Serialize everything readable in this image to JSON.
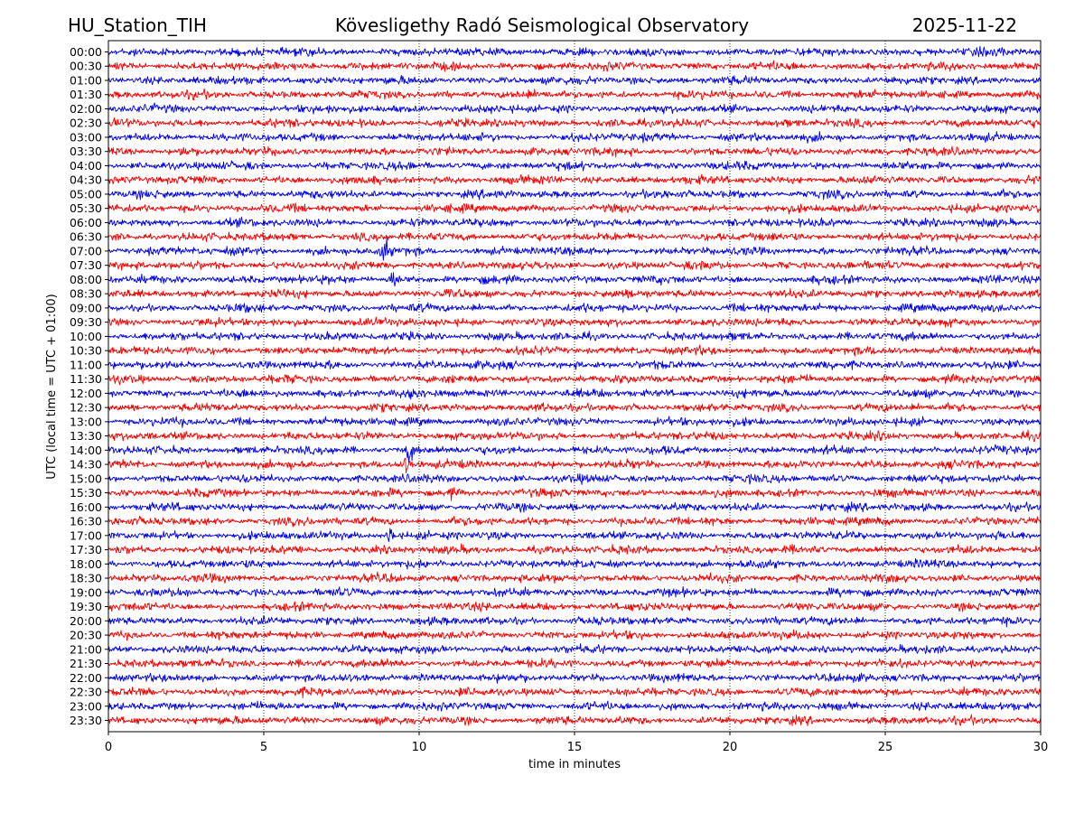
{
  "header": {
    "station": "HU_Station_TIH",
    "observatory": "Kövesligethy Radó Seismological Observatory",
    "date": "2025-11-22"
  },
  "chart_data": {
    "type": "line",
    "title": "Kövesligethy Radó Seismological Observatory",
    "xlabel": "time in minutes",
    "ylabel": "UTC (local time = UTC + 01:00)",
    "xlim": [
      0,
      30
    ],
    "x_ticks": [
      0,
      5,
      10,
      15,
      20,
      25,
      30
    ],
    "x_tick_labels": [
      "0",
      "5",
      "10",
      "15",
      "20",
      "25",
      "30"
    ],
    "grid": "vertical dotted at x ticks",
    "row_labels": [
      "00:00",
      "00:30",
      "01:00",
      "01:30",
      "02:00",
      "02:30",
      "03:00",
      "03:30",
      "04:00",
      "04:30",
      "05:00",
      "05:30",
      "06:00",
      "06:30",
      "07:00",
      "07:30",
      "08:00",
      "08:30",
      "09:00",
      "09:30",
      "10:00",
      "10:30",
      "11:00",
      "11:30",
      "12:00",
      "12:30",
      "13:00",
      "13:30",
      "14:00",
      "14:30",
      "15:00",
      "15:30",
      "16:00",
      "16:30",
      "17:00",
      "17:30",
      "18:00",
      "18:30",
      "19:00",
      "19:30",
      "20:00",
      "20:30",
      "21:00",
      "21:30",
      "22:00",
      "22:30",
      "23:00",
      "23:30"
    ],
    "colors": [
      "#0000dd",
      "#ee0000"
    ],
    "events": [
      {
        "row": "07:00",
        "minute": 8.9,
        "amplitude": 3.2
      },
      {
        "row": "08:00",
        "minute": 9.2,
        "amplitude": 2.4
      },
      {
        "row": "12:00",
        "minute": 9.8,
        "amplitude": 1.8
      },
      {
        "row": "14:00",
        "minute": 9.7,
        "amplitude": 2.8
      },
      {
        "row": "14:30",
        "minute": 9.6,
        "amplitude": 2.2
      },
      {
        "row": "17:00",
        "minute": 9.1,
        "amplitude": 3.0
      },
      {
        "row": "03:30",
        "minute": 2.4,
        "amplitude": 1.4
      },
      {
        "row": "15:30",
        "minute": 11.0,
        "amplitude": 1.3
      }
    ]
  }
}
